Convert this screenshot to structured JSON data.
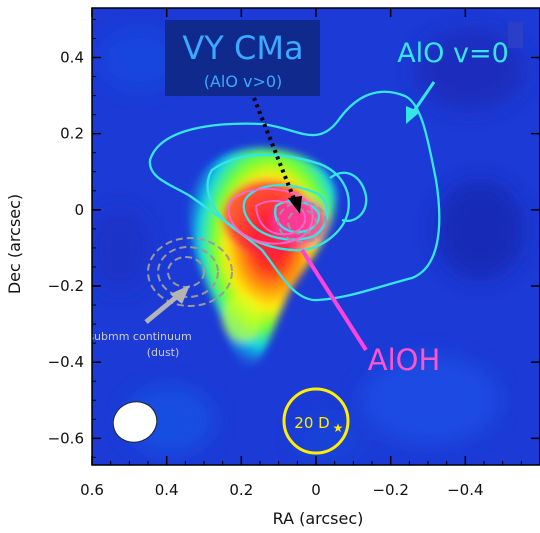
{
  "chart_data": {
    "type": "heatmap",
    "title": "VY CMa",
    "subtitle": "(AlO v>0)",
    "xlabel": "RA (arcsec)",
    "ylabel": "Dec (arcsec)",
    "xlim": [
      0.6,
      -0.6
    ],
    "ylim": [
      -0.67,
      0.53
    ],
    "x_ticks": [
      0.6,
      0.4,
      0.2,
      0,
      -0.2,
      -0.4
    ],
    "x_tick_labels": [
      "0.6",
      "0.4",
      "0.2",
      "0",
      "−0.2",
      "−0.4"
    ],
    "y_ticks": [
      0.4,
      0.2,
      0,
      -0.2,
      -0.4,
      -0.6
    ],
    "y_tick_labels": [
      "0.4",
      "0.2",
      "0",
      "−0.2",
      "−0.4",
      "−0.6"
    ],
    "emission_peak": [
      0.06,
      -0.05
    ],
    "contour_sets": [
      {
        "name": "AlO v=0",
        "color": "#36e6e6"
      },
      {
        "name": "AlOH",
        "color": "#ff55cc"
      },
      {
        "name": "submm continuum (dust)",
        "color": "#9a9a9a"
      }
    ],
    "annotations": [
      {
        "text": "AlO v=0",
        "color": "#36e6e6"
      },
      {
        "text": "AlOH",
        "color": "#ff55cc"
      },
      {
        "text": "submm continuum",
        "color": "#cccccc"
      },
      {
        "text": "(dust)",
        "color": "#cccccc"
      },
      {
        "text": "20 D",
        "color": "#ffee00"
      }
    ],
    "colors": {
      "background": "#1c3ad6",
      "title_box": "#0f2a8c",
      "title_text": "#3ca8ff",
      "scale_circle": "#ffee00",
      "beam": "#ffffff"
    }
  }
}
